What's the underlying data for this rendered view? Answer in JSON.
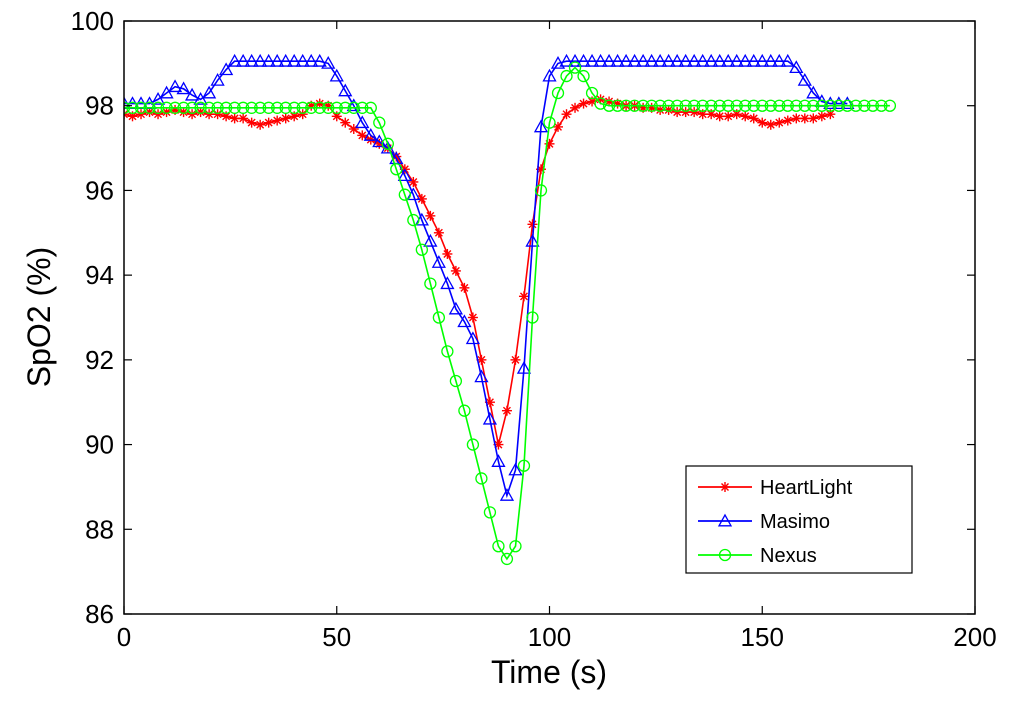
{
  "chart_data": {
    "type": "line",
    "title": "",
    "xlabel": "Time (s)",
    "ylabel": "SpO2 (%)",
    "xlim": [
      0,
      200
    ],
    "ylim": [
      86,
      100
    ],
    "xticks": [
      0,
      50,
      100,
      150,
      200
    ],
    "yticks": [
      86,
      88,
      90,
      92,
      94,
      96,
      98,
      100
    ],
    "xtick_labels": [
      "0",
      "50",
      "100",
      "150",
      "200"
    ],
    "ytick_labels": [
      "86",
      "88",
      "90",
      "92",
      "94",
      "96",
      "98",
      "100"
    ],
    "grid": false,
    "legend": {
      "position": "bottom-right",
      "entries": [
        "HeartLight",
        "Masimo",
        "Nexus"
      ]
    },
    "series": [
      {
        "name": "HeartLight",
        "color": "#ff0000",
        "marker": "asterisk",
        "x": [
          0,
          2,
          4,
          6,
          8,
          10,
          12,
          14,
          16,
          18,
          20,
          22,
          24,
          26,
          28,
          30,
          32,
          34,
          36,
          38,
          40,
          42,
          44,
          46,
          48,
          50,
          52,
          54,
          56,
          58,
          60,
          62,
          64,
          66,
          68,
          70,
          72,
          74,
          76,
          78,
          80,
          82,
          84,
          86,
          88,
          90,
          92,
          94,
          96,
          98,
          100,
          102,
          104,
          106,
          108,
          110,
          112,
          114,
          116,
          118,
          120,
          122,
          124,
          126,
          128,
          130,
          132,
          134,
          136,
          138,
          140,
          142,
          144,
          146,
          148,
          150,
          152,
          154,
          156,
          158,
          160,
          162,
          164,
          166
        ],
        "y": [
          97.8,
          97.75,
          97.8,
          97.85,
          97.8,
          97.85,
          97.9,
          97.85,
          97.8,
          97.85,
          97.8,
          97.8,
          97.75,
          97.7,
          97.7,
          97.6,
          97.55,
          97.6,
          97.65,
          97.7,
          97.75,
          97.8,
          98.0,
          98.05,
          98.0,
          97.75,
          97.6,
          97.45,
          97.3,
          97.2,
          97.1,
          97.0,
          96.8,
          96.5,
          96.2,
          95.8,
          95.4,
          95.0,
          94.5,
          94.1,
          93.7,
          93.0,
          92.0,
          91.0,
          90.0,
          90.8,
          92.0,
          93.5,
          95.2,
          96.5,
          97.1,
          97.5,
          97.8,
          97.95,
          98.05,
          98.1,
          98.15,
          98.1,
          98.05,
          98.0,
          98.0,
          97.95,
          97.95,
          97.9,
          97.9,
          97.85,
          97.85,
          97.85,
          97.8,
          97.8,
          97.75,
          97.75,
          97.8,
          97.75,
          97.7,
          97.6,
          97.55,
          97.6,
          97.65,
          97.7,
          97.7,
          97.7,
          97.75,
          97.8
        ]
      },
      {
        "name": "Masimo",
        "color": "#0000ff",
        "marker": "triangle",
        "x": [
          0,
          2,
          4,
          6,
          8,
          10,
          12,
          14,
          16,
          18,
          20,
          22,
          24,
          26,
          28,
          30,
          32,
          34,
          36,
          38,
          40,
          42,
          44,
          46,
          48,
          50,
          52,
          54,
          56,
          58,
          60,
          62,
          64,
          66,
          68,
          70,
          72,
          74,
          76,
          78,
          80,
          82,
          84,
          86,
          88,
          90,
          92,
          94,
          96,
          98,
          100,
          102,
          104,
          106,
          108,
          110,
          112,
          114,
          116,
          118,
          120,
          122,
          124,
          126,
          128,
          130,
          132,
          134,
          136,
          138,
          140,
          142,
          144,
          146,
          148,
          150,
          152,
          154,
          156,
          158,
          160,
          162,
          164,
          166,
          168,
          170
        ],
        "y": [
          98.05,
          98.05,
          98.05,
          98.05,
          98.15,
          98.3,
          98.45,
          98.4,
          98.25,
          98.15,
          98.3,
          98.6,
          98.85,
          99.05,
          99.05,
          99.05,
          99.05,
          99.05,
          99.05,
          99.05,
          99.05,
          99.05,
          99.05,
          99.05,
          99.0,
          98.7,
          98.35,
          98.0,
          97.6,
          97.3,
          97.15,
          97.0,
          96.75,
          96.35,
          95.9,
          95.3,
          94.8,
          94.3,
          93.8,
          93.2,
          92.9,
          92.5,
          91.6,
          90.6,
          89.6,
          88.8,
          89.4,
          91.8,
          94.8,
          97.5,
          98.7,
          99.0,
          99.05,
          99.05,
          99.05,
          99.05,
          99.05,
          99.05,
          99.05,
          99.05,
          99.05,
          99.05,
          99.05,
          99.05,
          99.05,
          99.05,
          99.05,
          99.05,
          99.05,
          99.05,
          99.05,
          99.05,
          99.05,
          99.05,
          99.05,
          99.05,
          99.05,
          99.05,
          99.05,
          98.9,
          98.6,
          98.3,
          98.1,
          98.05,
          98.05,
          98.05
        ]
      },
      {
        "name": "Nexus",
        "color": "#00ff00",
        "marker": "circle",
        "x": [
          0,
          2,
          4,
          6,
          8,
          10,
          12,
          14,
          16,
          18,
          20,
          22,
          24,
          26,
          28,
          30,
          32,
          34,
          36,
          38,
          40,
          42,
          44,
          46,
          48,
          50,
          52,
          54,
          56,
          58,
          60,
          62,
          64,
          66,
          68,
          70,
          72,
          74,
          76,
          78,
          80,
          82,
          84,
          86,
          88,
          90,
          92,
          94,
          96,
          98,
          100,
          102,
          104,
          106,
          108,
          110,
          112,
          114,
          116,
          118,
          120,
          122,
          124,
          126,
          128,
          130,
          132,
          134,
          136,
          138,
          140,
          142,
          144,
          146,
          148,
          150,
          152,
          154,
          156,
          158,
          160,
          162,
          164,
          166,
          168,
          170,
          172,
          174,
          176,
          178,
          180
        ],
        "y": [
          97.95,
          97.95,
          97.95,
          97.95,
          97.95,
          97.95,
          97.95,
          97.95,
          97.95,
          97.95,
          97.95,
          97.95,
          97.95,
          97.95,
          97.95,
          97.95,
          97.95,
          97.95,
          97.95,
          97.95,
          97.95,
          97.95,
          97.95,
          97.95,
          97.95,
          97.95,
          97.95,
          97.95,
          97.95,
          97.95,
          97.6,
          97.1,
          96.5,
          95.9,
          95.3,
          94.6,
          93.8,
          93.0,
          92.2,
          91.5,
          90.8,
          90.0,
          89.2,
          88.4,
          87.6,
          87.3,
          87.6,
          89.5,
          93.0,
          96.0,
          97.6,
          98.3,
          98.7,
          98.9,
          98.7,
          98.3,
          98.05,
          98.0,
          98.0,
          98.0,
          98.0,
          98.0,
          98.0,
          98.0,
          98.0,
          98.0,
          98.0,
          98.0,
          98.0,
          98.0,
          98.0,
          98.0,
          98.0,
          98.0,
          98.0,
          98.0,
          98.0,
          98.0,
          98.0,
          98.0,
          98.0,
          98.0,
          98.0,
          98.0,
          98.0,
          98.0,
          98.0,
          98.0,
          98.0,
          98.0,
          98.0
        ]
      }
    ]
  }
}
